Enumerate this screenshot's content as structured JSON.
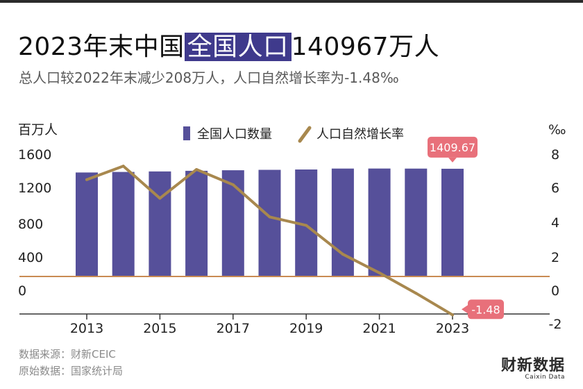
{
  "title_pre": "2023年末中国",
  "title_hl": "全国人口",
  "title_post": "140967万人",
  "subtitle": "总人口较2022年末减少208万人，人口自然增长率为-1.48‰",
  "footer": {
    "source": "数据来源：财新CEIC",
    "origin": "原始数据：国家统计局"
  },
  "brand": {
    "name": "财新数据",
    "sub": "Caixin Data"
  },
  "colors": {
    "bar": "#56509a",
    "line": "#a8884e",
    "zero_line": "#c98a52",
    "callout": "#e8707a"
  },
  "chart_data": {
    "type": "bar",
    "x": [
      2013,
      2014,
      2015,
      2016,
      2017,
      2018,
      2019,
      2020,
      2021,
      2022,
      2023
    ],
    "x_tick_labels": [
      "2013",
      "2015",
      "2017",
      "2019",
      "2021",
      "2023"
    ],
    "y_left_unit": "百万人",
    "y_right_unit": "‰",
    "y_left_ticks": [
      "1600",
      "1200",
      "800",
      "400",
      "0"
    ],
    "y_right_ticks": [
      "8",
      "6",
      "4",
      "2",
      "0",
      "-2"
    ],
    "y_left_range": [
      -400,
      1600
    ],
    "y_right_range": [
      -2,
      8
    ],
    "legend_placement": "top",
    "series": [
      {
        "name": "全国人口数量",
        "kind": "bar",
        "axis": "left",
        "values": [
          1360.72,
          1367.82,
          1374.62,
          1382.71,
          1390.08,
          1395.38,
          1400.05,
          1412.12,
          1412.6,
          1411.75,
          1409.67
        ]
      },
      {
        "name": "人口自然增长率",
        "kind": "line",
        "axis": "right",
        "values": [
          6.5,
          7.3,
          5.4,
          7.1,
          6.2,
          4.3,
          3.8,
          2.1,
          1.0,
          -0.2,
          -1.48
        ]
      }
    ],
    "annotations": [
      {
        "series": "全国人口数量",
        "year": 2023,
        "label": "1409.67"
      },
      {
        "series": "人口自然增长率",
        "year": 2023,
        "label": "-1.48"
      }
    ],
    "grid": false
  }
}
